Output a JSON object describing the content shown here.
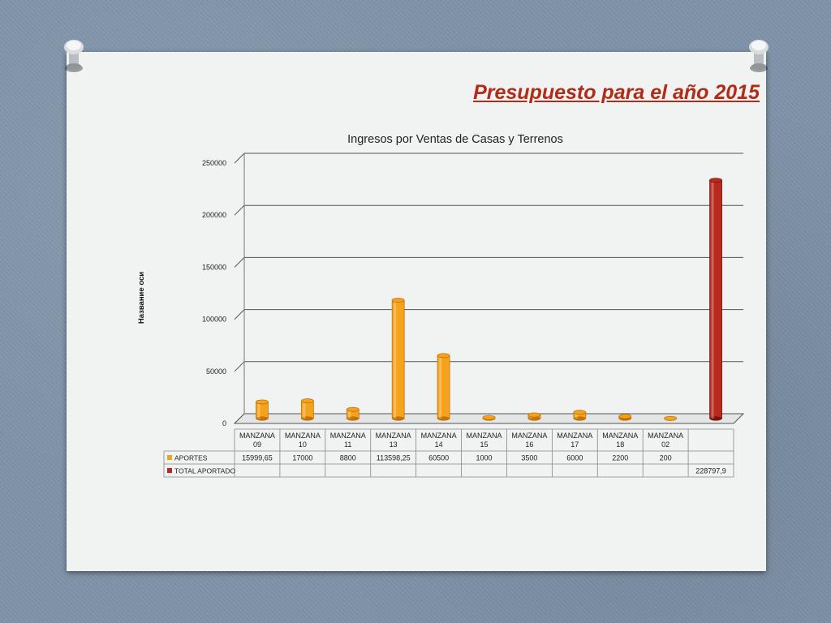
{
  "slide": {
    "title": "Presupuesto para el año 2015"
  },
  "colors": {
    "aportes": "#f5a21d",
    "aportes_dark": "#c47407",
    "total": "#b72a1f",
    "total_dark": "#7c140e",
    "title": "#b22b16"
  },
  "chart_data": {
    "type": "bar",
    "title": "Ingresos por Ventas de Casas y Terrenos",
    "xlabel": "",
    "ylabel": "Название оси",
    "ylim": [
      0,
      250000
    ],
    "yticks": [
      "0",
      "50000",
      "100000",
      "150000",
      "200000",
      "250000"
    ],
    "categories": [
      [
        "MANZANA",
        "09"
      ],
      [
        "MANZANA",
        "10"
      ],
      [
        "MANZANA",
        "11"
      ],
      [
        "MANZANA",
        "13"
      ],
      [
        "MANZANA",
        "14"
      ],
      [
        "MANZANA",
        "15"
      ],
      [
        "MANZANA",
        "16"
      ],
      [
        "MANZANA",
        "17"
      ],
      [
        "MANZANA",
        "18"
      ],
      [
        "MANZANA",
        "02"
      ],
      [
        "",
        ""
      ]
    ],
    "grid": true,
    "legend": "data-table",
    "series": [
      {
        "name": "APORTES",
        "values": [
          15999.65,
          17000,
          8800,
          113598.25,
          60500,
          1000,
          3500,
          6000,
          2200,
          200,
          null
        ],
        "labels": [
          "15999,65",
          "17000",
          "8800",
          "113598,25",
          "60500",
          "1000",
          "3500",
          "6000",
          "2200",
          "200",
          ""
        ]
      },
      {
        "name": "TOTAL APORTADO",
        "values": [
          null,
          null,
          null,
          null,
          null,
          null,
          null,
          null,
          null,
          null,
          228797.9
        ],
        "labels": [
          "",
          "",
          "",
          "",
          "",
          "",
          "",
          "",
          "",
          "",
          "228797,9"
        ]
      }
    ]
  }
}
